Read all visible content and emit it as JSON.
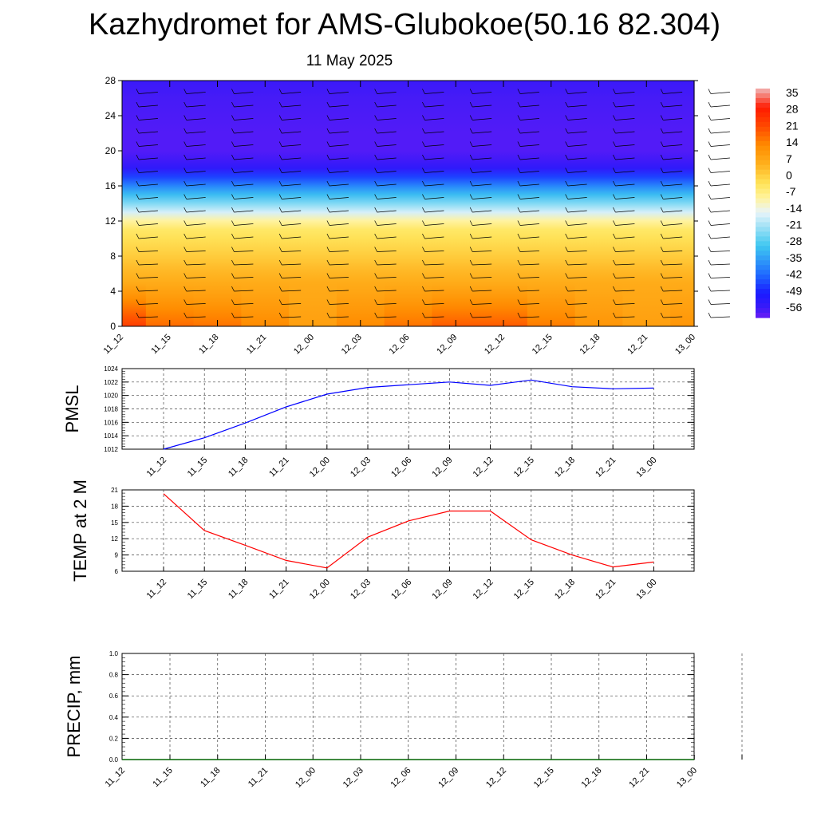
{
  "title": "Kazhydromet for AMS-Glubokoe(50.16 82.304)",
  "subtitle": "11 May 2025",
  "time_labels": [
    "11_12",
    "11_15",
    "11_18",
    "11_21",
    "12_00",
    "12_03",
    "12_06",
    "12_09",
    "12_12",
    "12_15",
    "12_18",
    "12_21",
    "13_00"
  ],
  "chart_data": [
    {
      "type": "heatmap",
      "description_of_axes": "x: forecast time, y: height",
      "x": [
        "11_12",
        "11_15",
        "11_18",
        "11_21",
        "12_00",
        "12_03",
        "12_06",
        "12_09",
        "12_12",
        "12_15",
        "12_18",
        "12_21",
        "13_00"
      ],
      "ylim": [
        0,
        28
      ],
      "yticks": [
        0,
        4,
        8,
        12,
        16,
        20,
        24,
        28
      ],
      "colorbar": {
        "ticks": [
          35,
          28,
          21,
          14,
          7,
          0,
          -7,
          -14,
          -21,
          -28,
          -35,
          -42,
          -49,
          -56
        ],
        "range": [
          -60,
          36
        ],
        "colors": {
          "cold": "#6a1cf5",
          "deep_blue": "#1a1aff",
          "cyan": "#3fc8f0",
          "light": "#e8f4fa",
          "yellow": "#ffe55a",
          "orange": "#ff8c00",
          "red": "#ff1a00",
          "pink": "#f0b8b8"
        }
      },
      "profile_levels": [
        0,
        4,
        8,
        11.5,
        12.5,
        14.5,
        16.5,
        18,
        19.5,
        22,
        26,
        28
      ],
      "profile_values": [
        14,
        7,
        0,
        -6,
        -14,
        -28,
        -42,
        -54,
        -58,
        -58,
        -57,
        -56
      ],
      "surface_warmth": [
        22,
        16,
        15,
        12,
        8,
        12,
        15,
        18,
        18,
        14,
        10,
        8,
        10
      ],
      "wind_barbs": true
    },
    {
      "type": "line",
      "ylabel": "PMSL",
      "x": [
        "11_12",
        "11_15",
        "11_18",
        "11_21",
        "12_00",
        "12_03",
        "12_06",
        "12_09",
        "12_12",
        "12_15",
        "12_18",
        "12_21",
        "13_00"
      ],
      "ylim": [
        1012,
        1024
      ],
      "yticks": [
        1012,
        1014,
        1016,
        1018,
        1020,
        1022,
        1024
      ],
      "series": [
        {
          "values": [
            1012.0,
            1013.7,
            1015.9,
            1018.3,
            1020.2,
            1021.2,
            1021.6,
            1022.0,
            1021.5,
            1022.3,
            1021.3,
            1021.0,
            1021.1
          ],
          "color": "#0000ff"
        }
      ],
      "grid": true
    },
    {
      "type": "line",
      "ylabel": "TEMP at 2 M",
      "x": [
        "11_12",
        "11_15",
        "11_18",
        "11_21",
        "12_00",
        "12_03",
        "12_06",
        "12_09",
        "12_12",
        "12_15",
        "12_18",
        "12_21",
        "13_00"
      ],
      "ylim": [
        6,
        21
      ],
      "yticks": [
        6,
        9,
        12,
        15,
        18,
        21
      ],
      "series": [
        {
          "values": [
            20.3,
            13.5,
            10.8,
            8.0,
            6.6,
            12.3,
            15.3,
            17.1,
            17.1,
            11.8,
            9.0,
            6.8,
            7.7
          ],
          "color": "#ff0000"
        }
      ],
      "grid": true
    },
    {
      "type": "line",
      "ylabel": "PRECIP, mm",
      "x": [
        "11_12",
        "11_15",
        "11_18",
        "11_21",
        "12_00",
        "12_03",
        "12_06",
        "12_09",
        "12_12",
        "12_15",
        "12_18",
        "12_21",
        "13_00"
      ],
      "ylim": [
        0,
        1
      ],
      "yticks": [
        "0.0",
        "0.2",
        "0.4",
        "0.6",
        "0.8",
        "1.0"
      ],
      "series": [
        {
          "values": [
            0,
            0,
            0,
            0,
            0,
            0,
            0,
            0,
            0,
            0,
            0,
            0,
            0
          ],
          "color": "#006400"
        }
      ],
      "grid": true
    }
  ]
}
